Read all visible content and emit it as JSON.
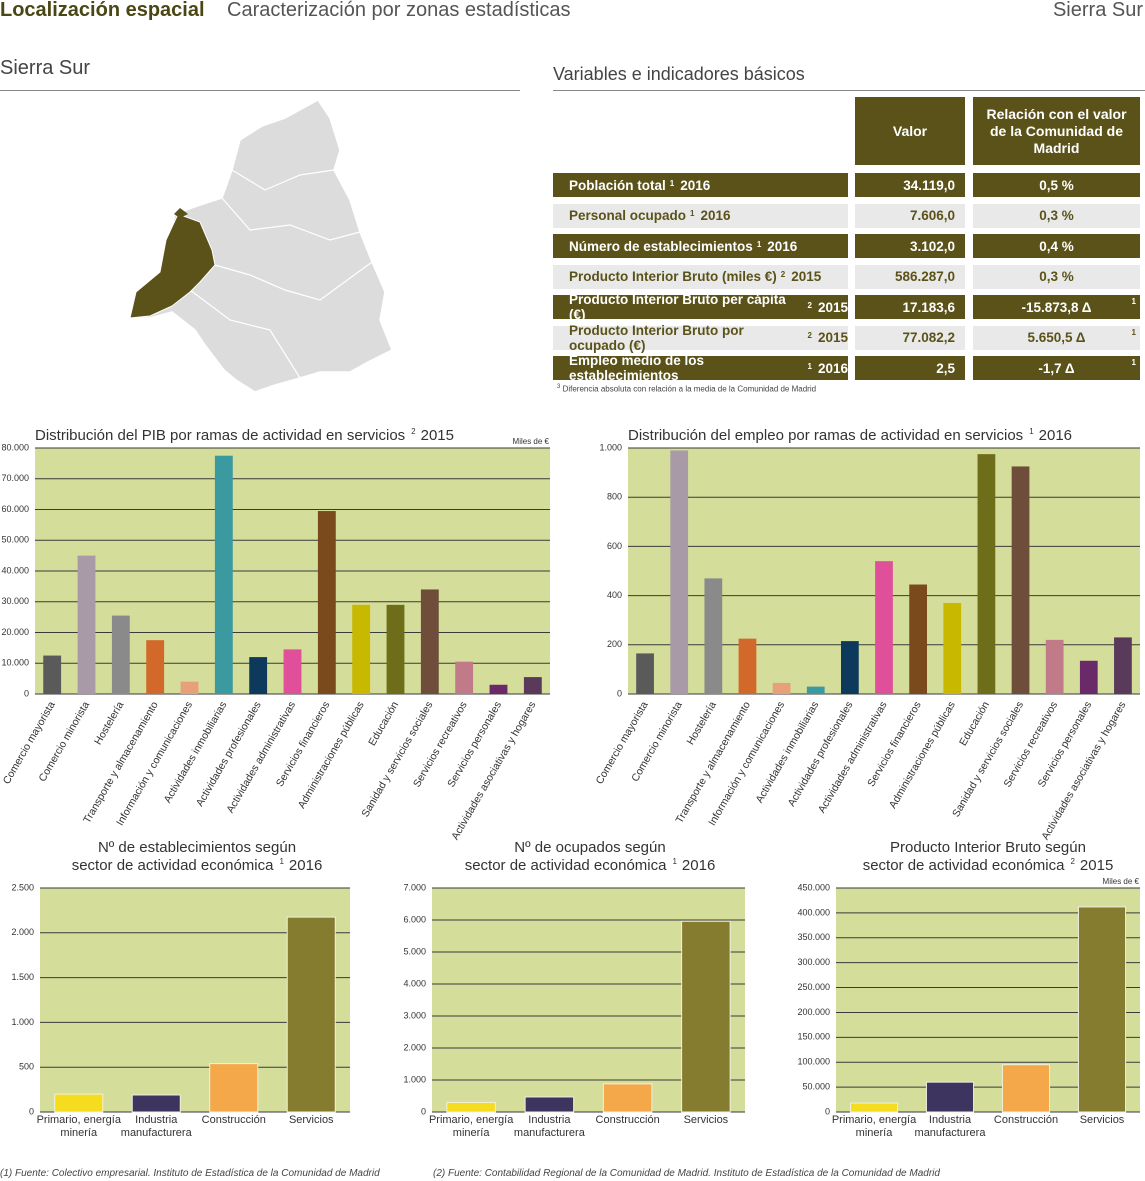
{
  "header": {
    "title": "Localización espacial",
    "subtitle": "Caracterización por zonas estadísticas",
    "zone": "Sierra Sur"
  },
  "map_title": "Sierra Sur",
  "table": {
    "title": "Variables e indicadores básicos",
    "columns": [
      "Valor",
      "Relación con el valor de la Comunidad de Madrid"
    ],
    "rows": [
      {
        "label": "Población total",
        "note": "1",
        "year": "2016",
        "value": "34.119,0",
        "relation": "0,5 %"
      },
      {
        "label": "Personal ocupado",
        "note": "1",
        "year": "2016",
        "value": "7.606,0",
        "relation": "0,3 %"
      },
      {
        "label": "Número de establecimientos",
        "note": "1",
        "year": "2016",
        "value": "3.102,0",
        "relation": "0,4 %"
      },
      {
        "label": "Producto Interior Bruto (miles €)",
        "note": "2",
        "year": "2015",
        "value": "586.287,0",
        "relation": "0,3 %"
      },
      {
        "label": "Producto Interior Bruto per cápita (€)",
        "note": "2",
        "year": "2015",
        "value": "17.183,6",
        "relation": "-15.873,8 Δ",
        "relation_note": "1"
      },
      {
        "label": "Producto Interior Bruto por ocupado (€)",
        "note": "2",
        "year": "2015",
        "value": "77.082,2",
        "relation": "5.650,5 Δ",
        "relation_note": "1"
      },
      {
        "label": "Empleo medio de los establecimientos",
        "note": "1",
        "year": "2016",
        "value": "2,5",
        "relation": "-1,7 Δ",
        "relation_note": "1"
      }
    ],
    "footnote_mark": "3",
    "footnote": "Diferencia absoluta con relación a la media de la Comunidad de Madrid"
  },
  "chart_data": [
    {
      "type": "bar",
      "title": "Distribución del PIB por ramas de actividad en servicios",
      "title_note": "2",
      "title_year": "2015",
      "unit": "Miles de €",
      "categories": [
        "Comercio mayorista",
        "Comercio minorista",
        "Hostelería",
        "Transporte y almacenamiento",
        "Información y comunicaciones",
        "Actividades inmobiliarias",
        "Actividades profesionales",
        "Actividades administrativas",
        "Servicios financieros",
        "Administraciones públicas",
        "Educación",
        "Sanidad y servicios sociales",
        "Servicios recreativos",
        "Servicios personales",
        "Actividades asociativas y hogares"
      ],
      "values": [
        12500,
        45000,
        25500,
        17500,
        4000,
        77500,
        12000,
        14500,
        59500,
        29000,
        29000,
        34000,
        10500,
        3000,
        5500
      ],
      "colors": [
        "#5a5a5a",
        "#a89aa6",
        "#8a8a8a",
        "#d2692a",
        "#e8a07a",
        "#3a9aa0",
        "#0d3a5c",
        "#e04f9a",
        "#7a4a1c",
        "#c8b800",
        "#6e6e1a",
        "#6e4e3a",
        "#c07a88",
        "#6a2a6a",
        "#5a3a5a"
      ],
      "ylim": [
        0,
        80000
      ],
      "yticks": [
        0,
        {
          "value": 10000,
          "label": "10.000"
        },
        {
          "value": 20000,
          "label": "20.000"
        },
        {
          "value": 30000,
          "label": "30.000"
        },
        {
          "value": 40000,
          "label": "40.000"
        },
        {
          "value": 50000,
          "label": "50.000"
        },
        {
          "value": 60000,
          "label": "60.000"
        },
        {
          "value": 70000,
          "label": "70.000"
        },
        {
          "value": 80000,
          "label": "80.000"
        }
      ],
      "grid": true
    },
    {
      "type": "bar",
      "title": "Distribución del empleo por ramas de actividad en servicios",
      "title_note": "1",
      "title_year": "2016",
      "categories": [
        "Comercio mayorista",
        "Comercio minorista",
        "Hostelería",
        "Transporte y almacenamiento",
        "Información y comunicaciones",
        "Actividades inmobiliarias",
        "Actividades profesionales",
        "Actividades administrativas",
        "Servicios financieros",
        "Administraciones públicas",
        "Educación",
        "Sanidad y servicios sociales",
        "Servicios recreativos",
        "Servicios personales",
        "Actividades asociativas y hogares"
      ],
      "values": [
        165,
        990,
        470,
        225,
        45,
        30,
        215,
        540,
        445,
        370,
        975,
        925,
        220,
        135,
        230
      ],
      "colors": [
        "#5a5a5a",
        "#a89aa6",
        "#8a8a8a",
        "#d2692a",
        "#e8a07a",
        "#3a9aa0",
        "#0d3a5c",
        "#e04f9a",
        "#7a4a1c",
        "#c8b800",
        "#6e6e1a",
        "#6e4e3a",
        "#c07a88",
        "#6a2a6a",
        "#5a3a5a"
      ],
      "ylim": [
        0,
        1000
      ],
      "yticks": [
        0,
        200,
        400,
        600,
        800,
        {
          "value": 1000,
          "label": "1.000"
        }
      ],
      "grid": true
    },
    {
      "type": "bar",
      "title": "Nº de establecimientos según",
      "subtitle": "sector de actividad económica",
      "title_note": "1",
      "title_year": "2016",
      "categories": [
        "Primario, energía minería",
        "Industria manufacturera",
        "Construcción",
        "Servicios"
      ],
      "values": [
        200,
        190,
        540,
        2175
      ],
      "colors": [
        "#f5dc1e",
        "#3d3460",
        "#f5a84a",
        "#857c30"
      ],
      "ylim": [
        0,
        2500
      ],
      "yticks": [
        0,
        500,
        {
          "value": 1000,
          "label": "1.000"
        },
        {
          "value": 1500,
          "label": "1.500"
        },
        {
          "value": 2000,
          "label": "2.000"
        },
        {
          "value": 2500,
          "label": "2.500"
        }
      ],
      "grid": true
    },
    {
      "type": "bar",
      "title": "Nº de ocupados según",
      "subtitle": "sector de actividad económica",
      "title_note": "1",
      "title_year": "2016",
      "categories": [
        "Primario, energía minería",
        "Industria manufacturera",
        "Construcción",
        "Servicios"
      ],
      "values": [
        300,
        470,
        880,
        5960
      ],
      "colors": [
        "#f5dc1e",
        "#3d3460",
        "#f5a84a",
        "#857c30"
      ],
      "ylim": [
        0,
        7000
      ],
      "yticks": [
        0,
        {
          "value": 1000,
          "label": "1.000"
        },
        {
          "value": 2000,
          "label": "2.000"
        },
        {
          "value": 3000,
          "label": "3.000"
        },
        {
          "value": 4000,
          "label": "4.000"
        },
        {
          "value": 5000,
          "label": "5.000"
        },
        {
          "value": 6000,
          "label": "6.000"
        },
        {
          "value": 7000,
          "label": "7.000"
        }
      ],
      "grid": true
    },
    {
      "type": "bar",
      "title": "Producto Interior Bruto según",
      "subtitle": "sector de actividad económica",
      "title_note": "2",
      "title_year": "2015",
      "unit": "Miles de €",
      "categories": [
        "Primario, energía minería",
        "Industria manufacturera",
        "Construcción",
        "Servicios"
      ],
      "values": [
        18000,
        60000,
        95000,
        412000
      ],
      "colors": [
        "#f5dc1e",
        "#3d3460",
        "#f5a84a",
        "#857c30"
      ],
      "ylim": [
        0,
        450000
      ],
      "yticks": [
        0,
        {
          "value": 50000,
          "label": "50.000"
        },
        {
          "value": 100000,
          "label": "100.000"
        },
        {
          "value": 150000,
          "label": "150.000"
        },
        {
          "value": 200000,
          "label": "200.000"
        },
        {
          "value": 250000,
          "label": "250.000"
        },
        {
          "value": 300000,
          "label": "300.000"
        },
        {
          "value": 350000,
          "label": "350.000"
        },
        {
          "value": 400000,
          "label": "400.000"
        },
        {
          "value": 450000,
          "label": "450.000"
        }
      ],
      "grid": true
    }
  ],
  "footer": [
    "(1) Fuente: Colectivo empresarial. Instituto de Estadística de la Comunidad de Madrid",
    "(2) Fuente: Contabilidad Regional de la Comunidad de Madrid. Instituto de Estadística de la Comunidad de Madrid"
  ]
}
